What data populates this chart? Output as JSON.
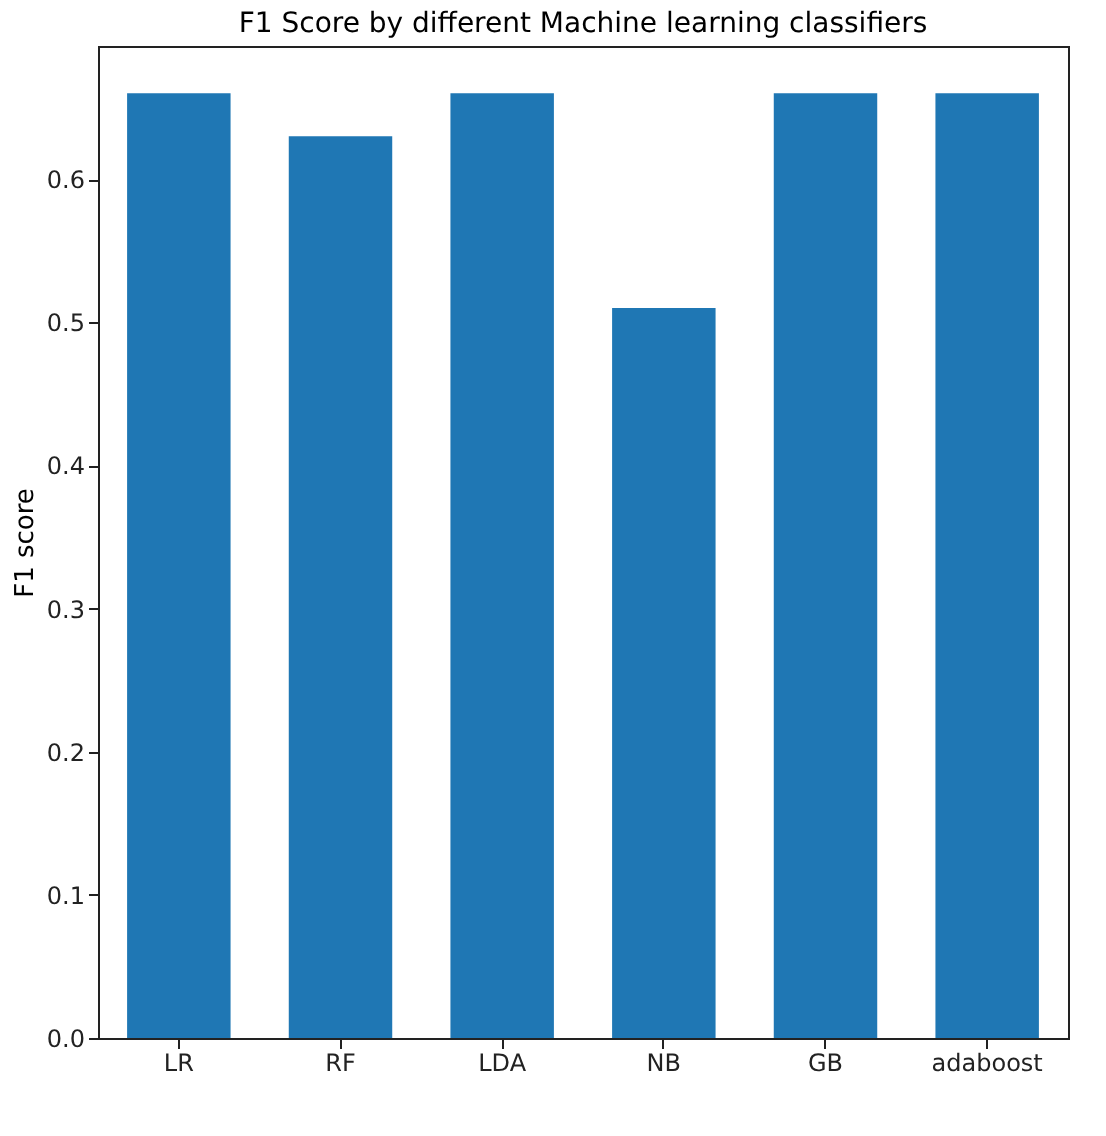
{
  "chart_data": {
    "type": "bar",
    "title": "F1 Score by different Machine learning classifiers",
    "ylabel": "F1 score",
    "categories": [
      "LR",
      "RF",
      "LDA",
      "NB",
      "GB",
      "adaboost"
    ],
    "values": [
      0.66,
      0.63,
      0.66,
      0.51,
      0.66,
      0.66
    ],
    "color": "#1f77b4",
    "ylim": [
      0,
      0.693
    ],
    "yticks": [
      {
        "value": 0,
        "label": "0.0"
      },
      0.1,
      0.2,
      0.3,
      0.4,
      0.5,
      0.6
    ],
    "grid": false
  }
}
